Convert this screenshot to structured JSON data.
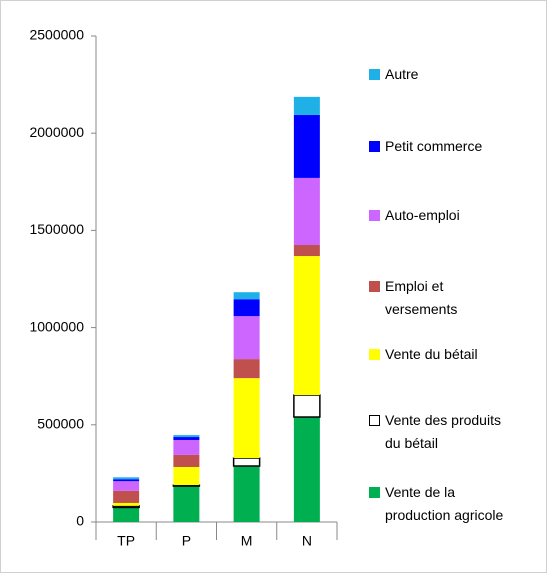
{
  "chart_data": {
    "type": "stacked_bar",
    "categories": [
      "TP",
      "P",
      "M",
      "N"
    ],
    "series": [
      {
        "name": "Vente de la production agricole",
        "color": "#00b050",
        "values": [
          75000,
          185000,
          288000,
          540000
        ]
      },
      {
        "name": "Vente des produits du bétail",
        "color": "#ffffff",
        "values": [
          8000,
          5000,
          41000,
          113000
        ]
      },
      {
        "name": "Vente du bétail",
        "color": "#ffff00",
        "values": [
          15000,
          93000,
          411000,
          715000
        ]
      },
      {
        "name": "Emploi et versements",
        "color": "#c0504d",
        "values": [
          62000,
          62000,
          98000,
          57000
        ]
      },
      {
        "name": "Auto-emploi",
        "color": "#cc66ff",
        "values": [
          50000,
          77000,
          221000,
          345000
        ]
      },
      {
        "name": "Petit commerce",
        "color": "#0000ff",
        "values": [
          10000,
          15000,
          87000,
          324000
        ]
      },
      {
        "name": "Autre",
        "color": "#1fb0e8",
        "values": [
          10000,
          10000,
          36000,
          93000
        ]
      }
    ],
    "ylim": [
      0,
      2500000
    ],
    "yticks": [
      0,
      500000,
      1000000,
      1500000,
      2000000,
      2500000
    ],
    "grid": false,
    "legend": "right"
  }
}
